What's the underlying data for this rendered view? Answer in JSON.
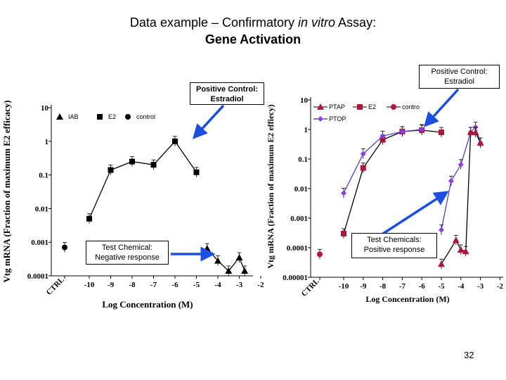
{
  "slide": {
    "title_prefix": "Data example – Confirmatory ",
    "title_italic": "in vitro",
    "title_suffix": " Assay:",
    "subtitle": "Gene Activation",
    "page_number": "32"
  },
  "callouts": {
    "positive_control_left": "Positive Control: Estradiol",
    "positive_control_right": "Positive Control: Estradiol",
    "negative_response": "Test Chemical: Negative response",
    "positive_response": "Test Chemicals: Positive response"
  },
  "colors": {
    "left_series": "#000000",
    "e2_right": "#b0163a",
    "ptap_right": "#b0163a",
    "ptop_right": "#8e3ee0",
    "arrow": "#1c4fe0"
  },
  "chart_data": [
    {
      "type": "line",
      "ylabel": "Vtg mRNA (Fraction of maximum E2 efficacy)",
      "xlabel": "Log Concentration (M)",
      "y_scale": "log",
      "ylim": [
        0.0001,
        10
      ],
      "y_ticks": [
        "10",
        "1",
        "0.1",
        "0.01",
        "0.001",
        "0.0001"
      ],
      "x_ticks": [
        "CTRL",
        "-10",
        "-9",
        "-8",
        "-7",
        "-6",
        "-5",
        "-4",
        "-3",
        "-2"
      ],
      "legend": [
        "IAB",
        "E2",
        "control"
      ],
      "legend_placement": "top-left",
      "series": [
        {
          "name": "IAB",
          "marker": "triangle",
          "x": [
            -4.5,
            -4,
            -3.5,
            -3,
            -2.75
          ],
          "y": [
            0.00065,
            0.00028,
            0.00014,
            0.00035,
            0.00014
          ]
        },
        {
          "name": "E2",
          "marker": "square",
          "x": [
            -10,
            -9,
            -8,
            -7,
            -6,
            -5
          ],
          "y": [
            0.005,
            0.14,
            0.25,
            0.2,
            1.0,
            0.12
          ]
        },
        {
          "name": "control",
          "marker": "circle",
          "x": [
            "CTRL"
          ],
          "y": [
            0.0007
          ]
        }
      ]
    },
    {
      "type": "line",
      "ylabel": "Vtg mRNA (Fraction of maximum E2 effiecy)",
      "xlabel": "Log Concentration (M)",
      "y_scale": "log",
      "ylim": [
        1e-05,
        10
      ],
      "y_ticks": [
        "10",
        "1",
        "0.1",
        "0.01",
        "0.001",
        "0.0001",
        "0.00001"
      ],
      "x_ticks": [
        "CTRL",
        "-10",
        "-9",
        "-8",
        "-7",
        "-6",
        "-5",
        "-4",
        "-3",
        "-2"
      ],
      "legend": [
        "PTAP",
        "E2",
        "contro",
        "PTOP"
      ],
      "legend_placement": "top",
      "series": [
        {
          "name": "E2",
          "marker": "square",
          "x": [
            -10,
            -9,
            -8,
            -7,
            -6,
            -5
          ],
          "y": [
            0.0003,
            0.05,
            0.45,
            0.85,
            0.95,
            0.8
          ]
        },
        {
          "name": "PTOP",
          "marker": "diamond",
          "x": [
            -10,
            -9,
            -8,
            -7,
            -6,
            -5,
            -4.5,
            -4,
            -3.5,
            -3.25,
            -3
          ],
          "y": [
            0.007,
            0.15,
            0.6,
            0.85,
            1.0,
            0.0004,
            0.018,
            0.065,
            0.8,
            1.2,
            0.35
          ]
        },
        {
          "name": "PTAP",
          "marker": "triangle",
          "x": [
            -5,
            -4.25,
            -4,
            -3.75,
            -3.5,
            -3.25,
            -3
          ],
          "y": [
            2.8e-05,
            0.00018,
            8.5e-05,
            7.5e-05,
            0.8,
            0.8,
            0.35
          ]
        },
        {
          "name": "contro",
          "marker": "circle",
          "x": [
            "CTRL"
          ],
          "y": [
            6e-05
          ]
        }
      ]
    }
  ]
}
